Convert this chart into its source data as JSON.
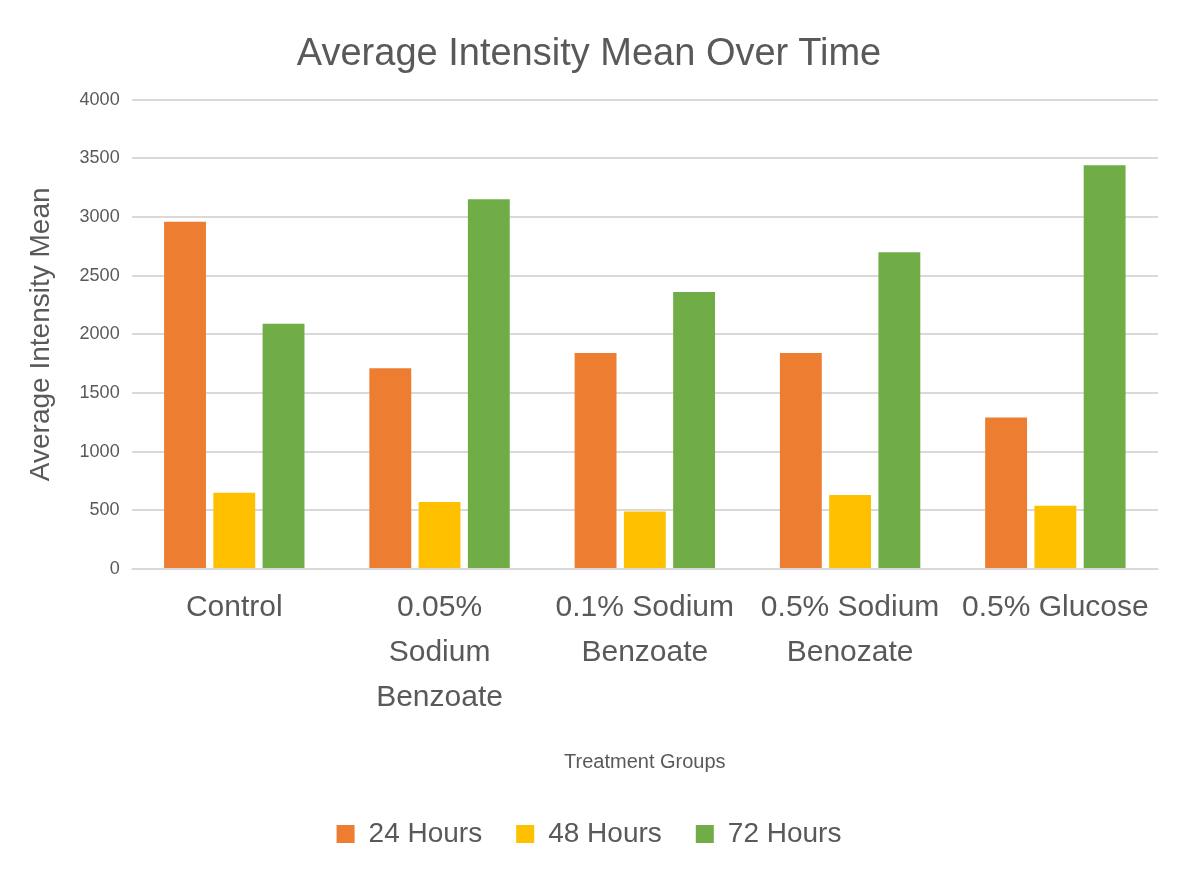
{
  "chart_data": {
    "type": "bar",
    "title": "Average Intensity Mean Over Time",
    "xlabel": "Treatment Groups",
    "ylabel": "Average Intensity Mean",
    "categories": [
      "Control",
      "0.05% Sodium Benzoate",
      "0.1% Sodium Benzoate",
      "0.5% Sodium Benozate",
      "0.5% Glucose"
    ],
    "series": [
      {
        "name": "24 Hours",
        "color": "#ed7d31",
        "values": [
          2960,
          1710,
          1840,
          1840,
          1290
        ]
      },
      {
        "name": "48 Hours",
        "color": "#ffc000",
        "values": [
          650,
          570,
          490,
          630,
          540
        ]
      },
      {
        "name": "72 Hours",
        "color": "#70ad47",
        "values": [
          2090,
          3150,
          2360,
          2700,
          3440
        ]
      }
    ],
    "ylim": [
      0,
      4000
    ],
    "yticks": [
      0,
      500,
      1000,
      1500,
      2000,
      2500,
      3000,
      3500,
      4000
    ],
    "grid": "y",
    "legend": "bottom"
  }
}
